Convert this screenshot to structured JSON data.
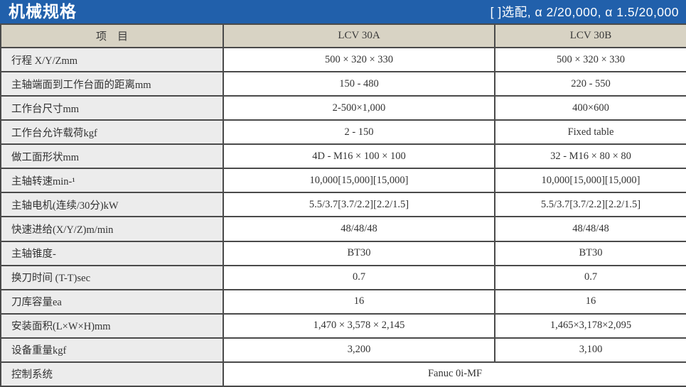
{
  "title_bar": {
    "title": "机械规格",
    "note": "[ ]选配, α 2/20,000, α 1.5/20,000"
  },
  "colors": {
    "accent_blue": "#2160ab",
    "header_bg": "#d8d3c4",
    "label_bg": "#ececec",
    "border": "#4a4a4a"
  },
  "table": {
    "header": {
      "item": "项　目",
      "col_a": "LCV 30A",
      "col_b": "LCV 30B"
    },
    "rows": [
      {
        "label": "行程 X/Y/Zmm",
        "a": "500 × 320 × 330",
        "b": "500 × 320 × 330"
      },
      {
        "label": "主轴端面到工作台面的距离mm",
        "a": "150 - 480",
        "b": "220 - 550"
      },
      {
        "label": "工作台尺寸mm",
        "a": "2-500×1,000",
        "b": "400×600"
      },
      {
        "label": "工作台允许载荷kgf",
        "a": "2 - 150",
        "b": "Fixed table"
      },
      {
        "label": "做工面形状mm",
        "a": "4D - M16 × 100 × 100",
        "b": "32 - M16 × 80 × 80"
      },
      {
        "label": "主轴转速min-¹",
        "a": "10,000[15,000][15,000]",
        "b": "10,000[15,000][15,000]"
      },
      {
        "label": "主轴电机(连续/30分)kW",
        "a": "5.5/3.7[3.7/2.2][2.2/1.5]",
        "b": "5.5/3.7[3.7/2.2][2.2/1.5]"
      },
      {
        "label": "快速进给(X/Y/Z)m/min",
        "a": "48/48/48",
        "b": "48/48/48"
      },
      {
        "label": "主轴锥度-",
        "a": "BT30",
        "b": "BT30"
      },
      {
        "label": "换刀时间 (T-T)sec",
        "a": "0.7",
        "b": "0.7"
      },
      {
        "label": "刀库容量ea",
        "a": "16",
        "b": "16"
      },
      {
        "label": "安装面积(L×W×H)mm",
        "a": "1,470 × 3,578 × 2,145",
        "b": "1,465×3,178×2,095"
      },
      {
        "label": "设备重量kgf",
        "a": "3,200",
        "b": "3,100"
      }
    ],
    "footer": {
      "label": "控制系统",
      "value": "Fanuc 0i-MF"
    }
  }
}
